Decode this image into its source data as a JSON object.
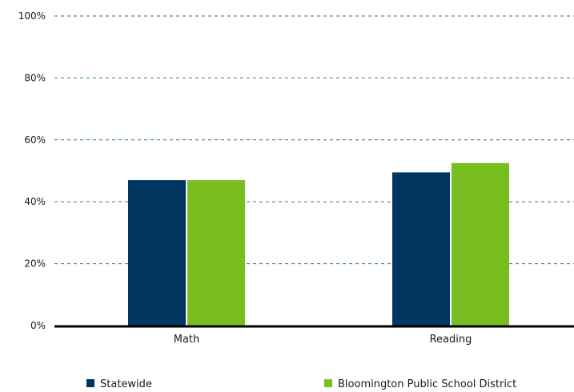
{
  "chart_data": {
    "type": "bar",
    "categories": [
      "Math",
      "Reading"
    ],
    "series": [
      {
        "name": "Statewide",
        "values": [
          47,
          49.5
        ],
        "color": "#003660"
      },
      {
        "name": "Bloomington Public School District",
        "values": [
          47,
          52.5
        ],
        "color": "#78be20"
      }
    ],
    "yticks": [
      "0%",
      "20%",
      "40%",
      "60%",
      "80%",
      "100%"
    ],
    "ytick_values": [
      0,
      20,
      40,
      60,
      80,
      100
    ],
    "ylim": [
      0,
      100
    ],
    "grid": true,
    "grid_color": "#2e7d7d",
    "axis_color": "#000000",
    "legend_position": "bottom"
  }
}
